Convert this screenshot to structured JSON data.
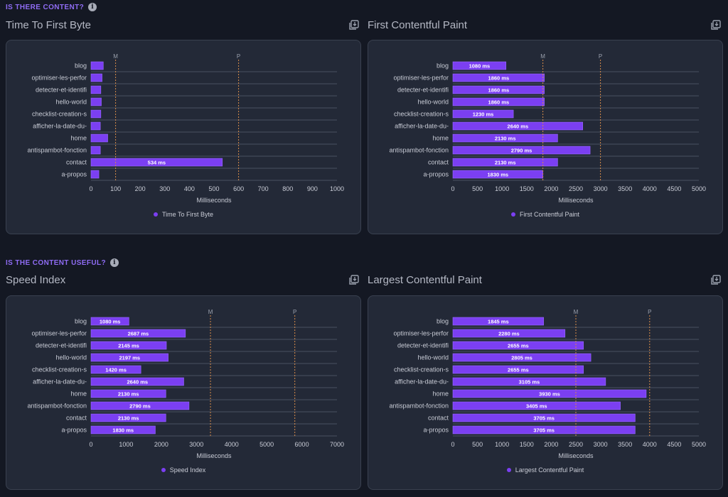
{
  "sections": [
    {
      "label": "IS THERE CONTENT?"
    },
    {
      "label": "IS THE CONTENT USEFUL?"
    }
  ],
  "colors": {
    "bar": "#7b3ff2",
    "barStroke": "#9a6bff",
    "marker": "#d98d4a",
    "grid": "#4a5160"
  },
  "icons": {
    "info": "info-icon",
    "export": "export-icon"
  },
  "chart_data": [
    {
      "type": "bar",
      "orientation": "horizontal",
      "title": "Time To First Byte",
      "xlabel": "Milliseconds",
      "legend": "Time To First Byte",
      "legend_position": "bottom",
      "categories": [
        "blog",
        "optimiser-les-perfor",
        "detecter-et-identifi",
        "hello-world",
        "checklist-creation-s",
        "afficher-la-date-du-",
        "home",
        "antispambot-fonction",
        "contact",
        "a-propos"
      ],
      "values": [
        50,
        45,
        40,
        42,
        40,
        38,
        68,
        38,
        534,
        32
      ],
      "value_labels": [
        "",
        "",
        "",
        "",
        "",
        "",
        "",
        "",
        "534 ms",
        ""
      ],
      "xlim": [
        0,
        1000
      ],
      "ticks": [
        0,
        100,
        200,
        300,
        400,
        500,
        600,
        700,
        800,
        900,
        1000
      ],
      "markers": [
        {
          "label": "M",
          "value": 100
        },
        {
          "label": "P",
          "value": 600
        }
      ]
    },
    {
      "type": "bar",
      "orientation": "horizontal",
      "title": "First Contentful Paint",
      "xlabel": "Milliseconds",
      "legend": "First Contentful Paint",
      "legend_position": "bottom",
      "categories": [
        "blog",
        "optimiser-les-perfor",
        "detecter-et-identifi",
        "hello-world",
        "checklist-creation-s",
        "afficher-la-date-du-",
        "home",
        "antispambot-fonction",
        "contact",
        "a-propos"
      ],
      "values": [
        1080,
        1860,
        1860,
        1860,
        1230,
        2640,
        2130,
        2790,
        2130,
        1830
      ],
      "value_labels": [
        "1080 ms",
        "1860 ms",
        "1860 ms",
        "1860 ms",
        "1230 ms",
        "2640 ms",
        "2130 ms",
        "2790 ms",
        "2130 ms",
        "1830 ms"
      ],
      "xlim": [
        0,
        5000
      ],
      "ticks": [
        0,
        500,
        1000,
        1500,
        2000,
        2500,
        3000,
        3500,
        4000,
        4500,
        5000
      ],
      "markers": [
        {
          "label": "M",
          "value": 1830
        },
        {
          "label": "P",
          "value": 3000
        }
      ]
    },
    {
      "type": "bar",
      "orientation": "horizontal",
      "title": "Speed Index",
      "xlabel": "Milliseconds",
      "legend": "Speed Index",
      "legend_position": "bottom",
      "categories": [
        "blog",
        "optimiser-les-perfor",
        "detecter-et-identifi",
        "hello-world",
        "checklist-creation-s",
        "afficher-la-date-du-",
        "home",
        "antispambot-fonction",
        "contact",
        "a-propos"
      ],
      "values": [
        1080,
        2687,
        2145,
        2197,
        1420,
        2640,
        2130,
        2790,
        2130,
        1830
      ],
      "value_labels": [
        "1080 ms",
        "2687 ms",
        "2145 ms",
        "2197 ms",
        "1420 ms",
        "2640 ms",
        "2130 ms",
        "2790 ms",
        "2130 ms",
        "1830 ms"
      ],
      "xlim": [
        0,
        7000
      ],
      "ticks": [
        0,
        1000,
        2000,
        3000,
        4000,
        5000,
        6000,
        7000
      ],
      "markers": [
        {
          "label": "M",
          "value": 3400
        },
        {
          "label": "P",
          "value": 5800
        }
      ]
    },
    {
      "type": "bar",
      "orientation": "horizontal",
      "title": "Largest Contentful Paint",
      "xlabel": "Milliseconds",
      "legend": "Largest Contentful Paint",
      "legend_position": "bottom",
      "categories": [
        "blog",
        "optimiser-les-perfor",
        "detecter-et-identifi",
        "hello-world",
        "checklist-creation-s",
        "afficher-la-date-du-",
        "home",
        "antispambot-fonction",
        "contact",
        "a-propos"
      ],
      "values": [
        1845,
        2280,
        2655,
        2805,
        2655,
        3105,
        3930,
        3405,
        3705,
        3705
      ],
      "value_labels": [
        "1845 ms",
        "2280 ms",
        "2655 ms",
        "2805 ms",
        "2655 ms",
        "3105 ms",
        "3930 ms",
        "3405 ms",
        "3705 ms",
        "3705 ms"
      ],
      "xlim": [
        0,
        5000
      ],
      "ticks": [
        0,
        500,
        1000,
        1500,
        2000,
        2500,
        3000,
        3500,
        4000,
        4500,
        5000
      ],
      "markers": [
        {
          "label": "M",
          "value": 2500
        },
        {
          "label": "P",
          "value": 4000
        }
      ]
    }
  ]
}
